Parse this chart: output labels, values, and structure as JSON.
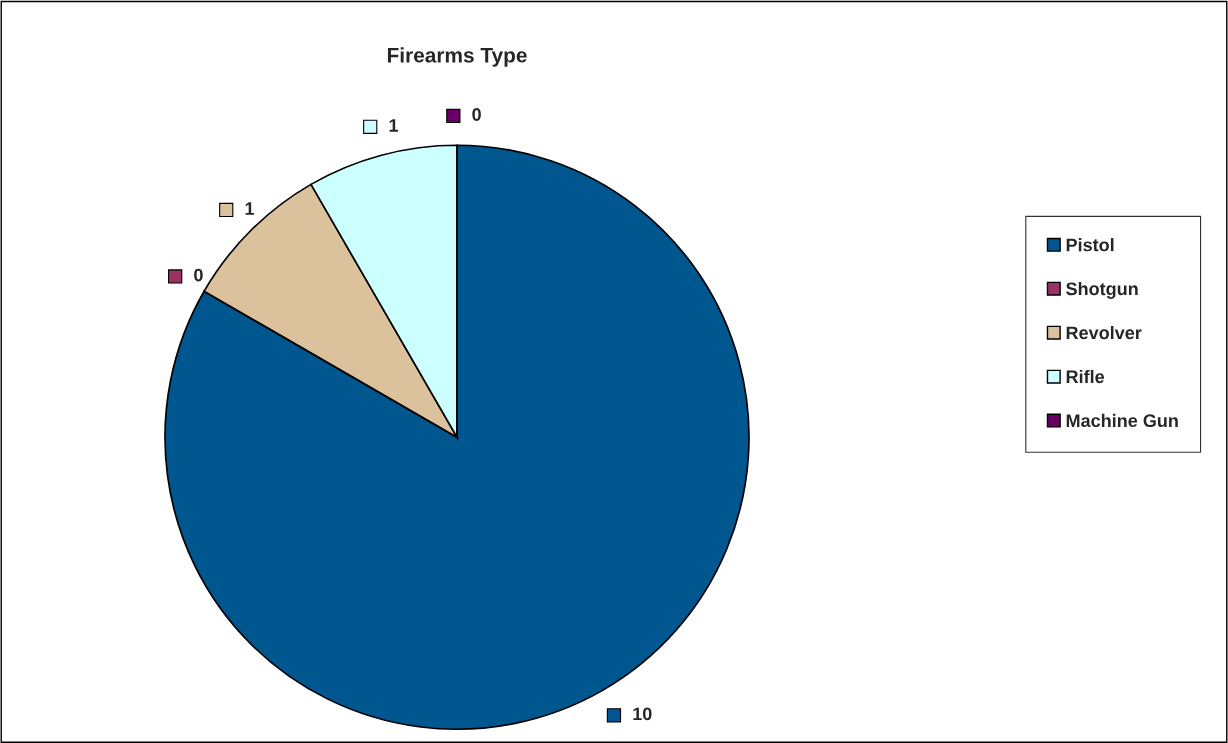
{
  "chart_data": {
    "type": "pie",
    "title": "Firearms Type",
    "categories": [
      "Pistol",
      "Shotgun",
      "Revolver",
      "Rifle",
      "Machine Gun"
    ],
    "values": [
      10,
      0,
      1,
      1,
      0
    ],
    "colors": [
      "#00568f",
      "#993366",
      "#dcc29c",
      "#ccffff",
      "#660066"
    ],
    "value_labels": [
      "10",
      "0",
      "1",
      "1",
      "0"
    ],
    "legend": "right"
  }
}
